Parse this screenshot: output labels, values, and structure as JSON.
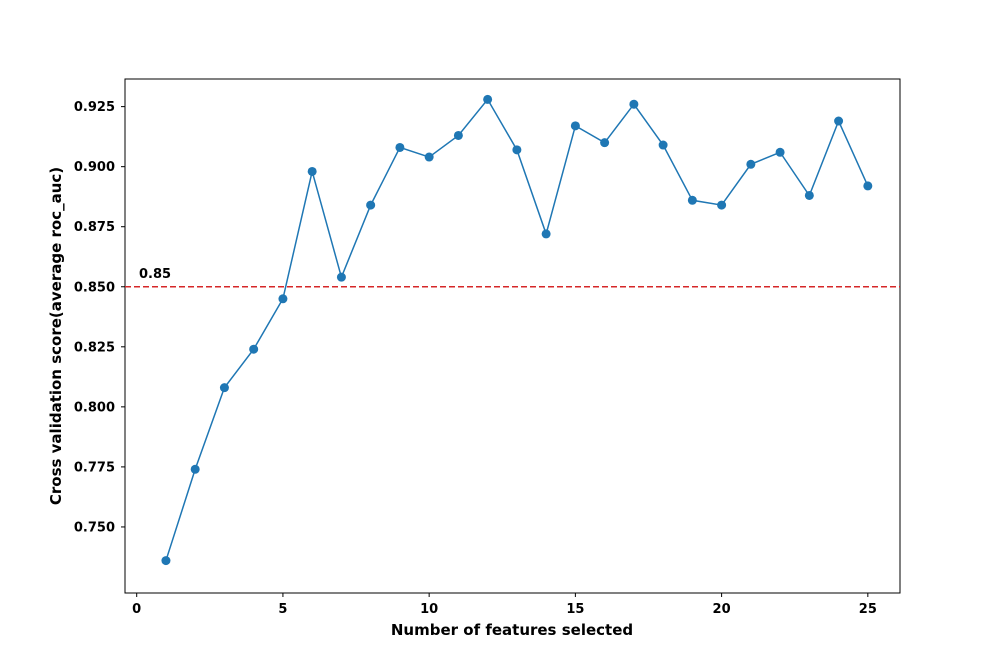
{
  "chart_data": {
    "type": "line",
    "xlabel": "Number of features selected",
    "ylabel": "Cross validation score(average roc_auc)",
    "xlim": [
      -0.4,
      26.1
    ],
    "ylim": [
      0.7225,
      0.9365
    ],
    "xticks": [
      0,
      5,
      10,
      15,
      20,
      25
    ],
    "yticks": [
      0.75,
      0.775,
      0.8,
      0.825,
      0.85,
      0.875,
      0.9,
      0.925
    ],
    "ytick_labels": [
      "0.750",
      "0.775",
      "0.800",
      "0.825",
      "0.850",
      "0.875",
      "0.900",
      "0.925"
    ],
    "grid": false,
    "series": [
      {
        "color": "#1f77b4",
        "marker": "circle",
        "x": [
          1,
          2,
          3,
          4,
          5,
          6,
          7,
          8,
          9,
          10,
          11,
          12,
          13,
          14,
          15,
          16,
          17,
          18,
          19,
          20,
          21,
          22,
          23,
          24,
          25
        ],
        "y": [
          0.736,
          0.774,
          0.808,
          0.824,
          0.845,
          0.898,
          0.854,
          0.884,
          0.908,
          0.904,
          0.913,
          0.928,
          0.907,
          0.872,
          0.917,
          0.91,
          0.926,
          0.909,
          0.886,
          0.884,
          0.901,
          0.906,
          0.888,
          0.919,
          0.892
        ]
      }
    ],
    "reference_line": {
      "y": 0.85,
      "color": "#d62728",
      "style": "dashed",
      "label": "0.85"
    }
  }
}
